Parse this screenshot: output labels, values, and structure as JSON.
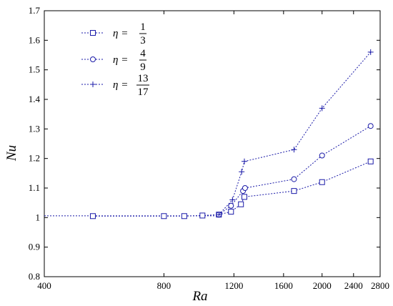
{
  "chart_data": {
    "type": "line",
    "xlabel": "Ra",
    "ylabel": "Nu",
    "xscale": "log",
    "xlim": [
      400,
      2800
    ],
    "ylim": [
      0.8,
      1.7
    ],
    "xticks": [
      400,
      800,
      1200,
      1600,
      2000,
      2400,
      2800
    ],
    "xtick_labels": [
      "400",
      "800",
      "1200",
      "1600",
      "2000",
      "2400",
      "2800"
    ],
    "yticks": [
      0.8,
      0.9,
      1.0,
      1.1,
      1.2,
      1.3,
      1.4,
      1.5,
      1.6,
      1.7
    ],
    "ytick_labels": [
      "0.8",
      "0.9",
      "1",
      "1.1",
      "1.2",
      "1.3",
      "1.4",
      "1.5",
      "1.6",
      "1.7"
    ],
    "grid": false,
    "legend_position": "top-left",
    "color": "#1a1aa8",
    "baseline": {
      "x": [
        400,
        1100
      ],
      "y": [
        1.006,
        1.006
      ]
    },
    "series": [
      {
        "name_prefix": "η = ",
        "name_num": "1",
        "name_den": "3",
        "marker": "square",
        "x": [
          530,
          800,
          900,
          1000,
          1100,
          1180,
          1250,
          1275,
          1700,
          2000,
          2650
        ],
        "y": [
          1.005,
          1.005,
          1.005,
          1.007,
          1.01,
          1.02,
          1.045,
          1.07,
          1.09,
          1.12,
          1.19
        ]
      },
      {
        "name_prefix": "η = ",
        "name_num": "4",
        "name_den": "9",
        "marker": "circle",
        "x": [
          1100,
          1180,
          1265,
          1280,
          1700,
          2000,
          2650
        ],
        "y": [
          1.01,
          1.04,
          1.09,
          1.1,
          1.13,
          1.21,
          1.31
        ]
      },
      {
        "name_prefix": "η = ",
        "name_num": "13",
        "name_den": "17",
        "marker": "plus",
        "x": [
          1100,
          1190,
          1255,
          1275,
          1700,
          2000,
          2650
        ],
        "y": [
          1.01,
          1.06,
          1.155,
          1.19,
          1.23,
          1.37,
          1.56
        ]
      }
    ]
  }
}
